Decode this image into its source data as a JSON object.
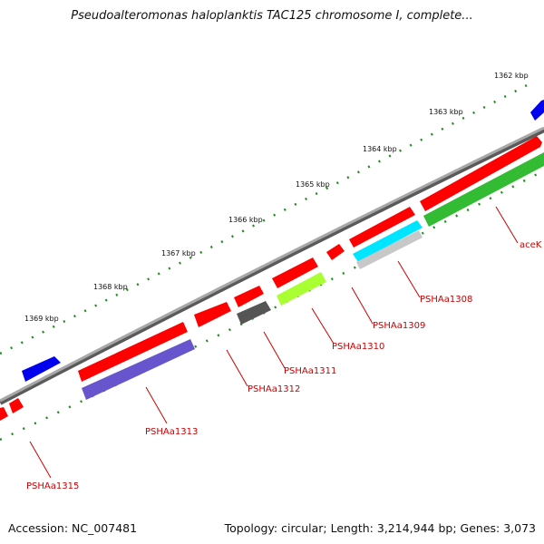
{
  "title": "Pseudoalteromonas haloplanktis TAC125 chromosome I, complete...",
  "footer": {
    "accession": "Accession: NC_007481",
    "summary": "Topology: circular; Length: 3,214,944 bp; Genes: 3,073"
  },
  "ticks": [
    "1362 kbp",
    "1363 kbp",
    "1364 kbp",
    "1365 kbp",
    "1366 kbp",
    "1367 kbp",
    "1368 kbp",
    "1369 kbp"
  ],
  "gene_labels": [
    "aceK",
    "PSHAa1308",
    "PSHAa1309",
    "PSHAa1310",
    "PSHAa1311",
    "PSHAa1312",
    "PSHAa1313",
    "PSHAa1315"
  ],
  "colors": {
    "backbone": "#808080",
    "tick": "#228b22",
    "label": "#cc0000",
    "red": "#ff0000",
    "blue": "#0000ee",
    "green": "#33bb33",
    "cyan": "#00e5ff",
    "lightgray": "#c8c8c8",
    "darkgray": "#555555",
    "lime": "#aaff33",
    "purple": "#6655cc"
  }
}
